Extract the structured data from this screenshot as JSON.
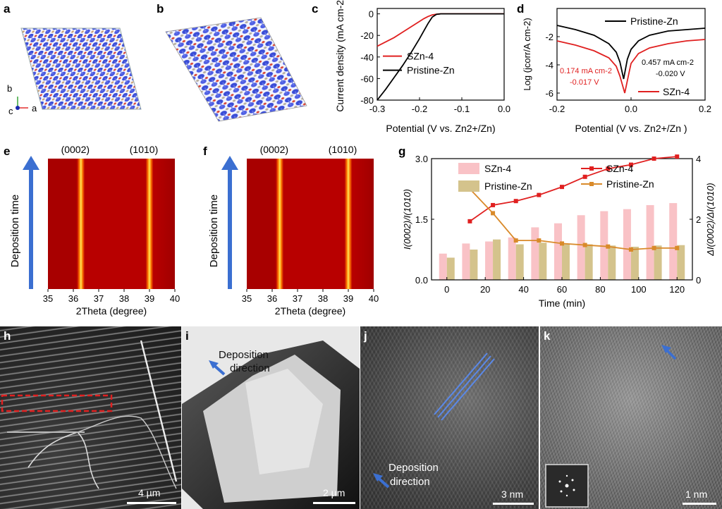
{
  "panels": {
    "a": "a",
    "b": "b",
    "c": "c",
    "d": "d",
    "e": "e",
    "f": "f",
    "g": "g",
    "h": "h",
    "i": "i",
    "j": "j",
    "k": "k"
  },
  "axes_a": {
    "b": "b",
    "c": "c",
    "a": "a"
  },
  "colors": {
    "red": "#e02020",
    "black": "#000000",
    "pink": "#f9c2c6",
    "tan": "#d4c38c",
    "orange": "#d98a2a",
    "blue": "#3b6fd1"
  },
  "chart_data": [
    {
      "id": "c",
      "type": "line",
      "xlabel": "Potential (V vs. Zn2+/Zn)",
      "ylabel": "Current density (mA cm-2)",
      "xlim": [
        -0.3,
        0.0
      ],
      "ylim": [
        -80,
        5
      ],
      "xticks": [
        "-0.3",
        "-0.2",
        "-0.1",
        "0.0"
      ],
      "yticks": [
        "0",
        "-20",
        "-40",
        "-60",
        "-80"
      ],
      "legend": "center-right",
      "series": [
        {
          "name": "SZn-4",
          "color": "#e02020",
          "x": [
            -0.3,
            -0.28,
            -0.26,
            -0.24,
            -0.22,
            -0.2,
            -0.19,
            -0.18,
            -0.17,
            -0.16,
            -0.15,
            -0.1,
            0.0
          ],
          "y": [
            -30,
            -26,
            -22,
            -17,
            -12,
            -7,
            -4.5,
            -2.5,
            -1,
            -0.3,
            0,
            0,
            0
          ]
        },
        {
          "name": "Pristine-Zn",
          "color": "#000000",
          "x": [
            -0.3,
            -0.28,
            -0.26,
            -0.24,
            -0.22,
            -0.2,
            -0.19,
            -0.18,
            -0.17,
            -0.16,
            -0.15,
            -0.1,
            0.0
          ],
          "y": [
            -80,
            -70,
            -59,
            -48,
            -36,
            -23,
            -16,
            -9,
            -3,
            -0.5,
            0,
            0,
            0
          ]
        }
      ]
    },
    {
      "id": "d",
      "type": "line",
      "xlabel": "Potential (V vs. Zn2+/Zn )",
      "ylabel": "Log (jcorr/A cm-2)",
      "xlim": [
        -0.2,
        0.2
      ],
      "ylim": [
        -6.5,
        0
      ],
      "xticks": [
        "-0.2",
        "0.0",
        "0.2"
      ],
      "yticks": [
        "-2",
        "-4",
        "-6"
      ],
      "annotations": [
        "0.174 mA cm-2",
        "-0.017 V",
        "0.457 mA cm-2",
        "-0.020 V"
      ],
      "series": [
        {
          "name": "Pristine-Zn",
          "color": "#000000",
          "x": [
            -0.2,
            -0.15,
            -0.1,
            -0.06,
            -0.04,
            -0.03,
            -0.02,
            -0.01,
            0.0,
            0.02,
            0.05,
            0.1,
            0.15,
            0.2
          ],
          "y": [
            -1.2,
            -1.5,
            -1.9,
            -2.5,
            -3.1,
            -3.8,
            -5.0,
            -3.6,
            -2.9,
            -2.3,
            -1.9,
            -1.6,
            -1.5,
            -1.4
          ]
        },
        {
          "name": "SZn-4",
          "color": "#e02020",
          "x": [
            -0.2,
            -0.15,
            -0.1,
            -0.06,
            -0.04,
            -0.03,
            -0.017,
            -0.005,
            0.0,
            0.02,
            0.05,
            0.1,
            0.15,
            0.2
          ],
          "y": [
            -2.3,
            -2.6,
            -3.0,
            -3.5,
            -4.1,
            -4.8,
            -6.0,
            -4.5,
            -3.9,
            -3.2,
            -2.8,
            -2.5,
            -2.3,
            -2.2
          ]
        }
      ]
    },
    {
      "id": "e",
      "type": "heatmap",
      "xlabel": "2Theta (degree)",
      "ylabel": "Deposition time",
      "xlim": [
        35,
        40
      ],
      "xticks": [
        "35",
        "36",
        "37",
        "38",
        "39",
        "40"
      ],
      "peaks": [
        {
          "label": "(0002)",
          "x": 36.3
        },
        {
          "label": "(1010)",
          "x": 39.0
        }
      ]
    },
    {
      "id": "f",
      "type": "heatmap",
      "xlabel": "2Theta (degree)",
      "ylabel": "Deposition time",
      "xlim": [
        35,
        40
      ],
      "xticks": [
        "35",
        "36",
        "37",
        "38",
        "39",
        "40"
      ],
      "peaks": [
        {
          "label": "(0002)",
          "x": 36.3
        },
        {
          "label": "(1010)",
          "x": 39.0
        }
      ]
    },
    {
      "id": "g",
      "type": "bar",
      "xlabel": "Time (min)",
      "ylabel": "I(0002)/I(1010)",
      "y2label": "ΔI(0002)/ΔI(1010)",
      "xlim": [
        -8,
        128
      ],
      "ylim": [
        0,
        3.0
      ],
      "y2lim": [
        0,
        4
      ],
      "xticks": [
        "0",
        "20",
        "40",
        "60",
        "80",
        "100",
        "120"
      ],
      "yticks": [
        "0.0",
        "1.5",
        "3.0"
      ],
      "y2ticks": [
        "0",
        "2",
        "4"
      ],
      "x": [
        0,
        12,
        24,
        36,
        48,
        60,
        72,
        84,
        96,
        108,
        120
      ],
      "bar_series": [
        {
          "name": "SZn-4",
          "color": "#f9c2c6",
          "values": [
            0.65,
            0.9,
            0.95,
            1.05,
            1.3,
            1.4,
            1.6,
            1.7,
            1.75,
            1.85,
            1.9
          ]
        },
        {
          "name": "Pristine-Zn",
          "color": "#d4c38c",
          "values": [
            0.55,
            0.75,
            1.0,
            0.88,
            0.92,
            0.88,
            0.88,
            0.85,
            0.82,
            0.85,
            0.86
          ]
        }
      ],
      "line_series": [
        {
          "name": "SZn-4",
          "color": "#e02020",
          "axis": "left",
          "x": [
            12,
            24,
            36,
            48,
            60,
            72,
            84,
            96,
            108,
            120
          ],
          "y": [
            1.45,
            1.85,
            1.95,
            2.1,
            2.3,
            2.55,
            2.75,
            2.85,
            3.0,
            3.05
          ]
        },
        {
          "name": "Pristine-Zn",
          "color": "#d98a2a",
          "axis": "right",
          "x": [
            12,
            24,
            36,
            48,
            60,
            72,
            84,
            96,
            108,
            120
          ],
          "y": [
            3.0,
            2.2,
            1.3,
            1.3,
            1.2,
            1.15,
            1.1,
            1.0,
            1.05,
            1.05
          ]
        }
      ]
    }
  ],
  "panel_i": {
    "text_line1": "Deposition",
    "text_line2": "direction",
    "scale": "2 µm"
  },
  "panel_j": {
    "text_line1": "Deposition",
    "text_line2": "direction",
    "scale": "3 nm"
  },
  "panel_h": {
    "scale": "4 µm"
  },
  "panel_k": {
    "scale": "1 nm"
  }
}
